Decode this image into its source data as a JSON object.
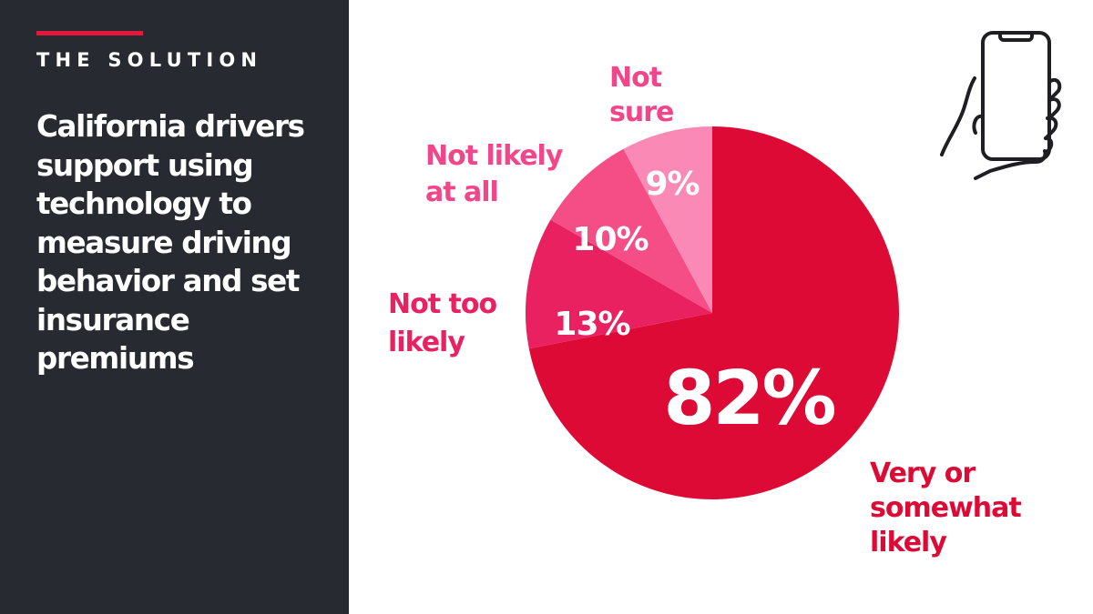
{
  "sidebar": {
    "eyebrow": "THE SOLUTION",
    "headline": "California drivers support using technology to measure driving behavior and set insurance premiums"
  },
  "icons": {
    "phone": "hand-holding-smartphone-icon"
  },
  "colors": {
    "sidebar_bg": "#272a30",
    "accent": "#e3193b"
  },
  "chart_data": {
    "type": "pie",
    "title": "",
    "slices": [
      {
        "label": [
          "Very or",
          "somewhat",
          "likely"
        ],
        "value": 82,
        "value_label": "82%",
        "color": "#dc0a35",
        "label_color": "#dc0a35"
      },
      {
        "label": [
          "Not too",
          "likely"
        ],
        "value": 13,
        "value_label": "13%",
        "color": "#ea2160",
        "label_color": "#ea2160"
      },
      {
        "label": [
          "Not likely",
          "at all"
        ],
        "value": 10,
        "value_label": "10%",
        "color": "#f54e87",
        "label_color": "#f2468a"
      },
      {
        "label": [
          "Not",
          "sure"
        ],
        "value": 9,
        "value_label": "9%",
        "color": "#fb89b6",
        "label_color": "#f2468a"
      }
    ]
  }
}
